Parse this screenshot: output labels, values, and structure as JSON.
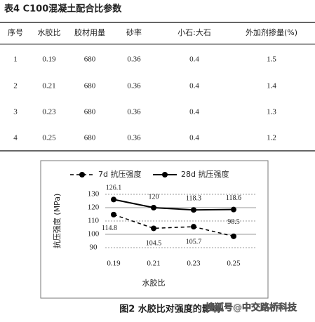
{
  "table": {
    "title": "表4 C100混凝土配合比参数",
    "headers": [
      "序号",
      "水胶比",
      "胶材用量",
      "砂率",
      "小石:大石",
      "外加剂掺量(%)"
    ],
    "rows": [
      [
        "1",
        "0.19",
        "680",
        "0.36",
        "0.4",
        "1.5"
      ],
      [
        "2",
        "0.21",
        "680",
        "0.36",
        "0.4",
        "1.4"
      ],
      [
        "3",
        "0.23",
        "680",
        "0.36",
        "0.4",
        "1.3"
      ],
      [
        "4",
        "0.25",
        "680",
        "0.36",
        "0.4",
        "1.2"
      ]
    ]
  },
  "chart_data": {
    "type": "line",
    "categories": [
      "0.19",
      "0.21",
      "0.23",
      "0.25"
    ],
    "series": [
      {
        "name": "7d 抗压强度",
        "color": "#000000",
        "dashed": true,
        "values": [
          114.8,
          104.5,
          105.7,
          98.5
        ]
      },
      {
        "name": "28d 抗压强度",
        "color": "#000000",
        "dashed": false,
        "values": [
          126.1,
          120,
          118.3,
          118.6
        ]
      }
    ],
    "ylim": [
      90,
      130
    ],
    "yticks": [
      90,
      100,
      110,
      120,
      130
    ],
    "grid": true,
    "y_label": "抗压强度 (MPa)",
    "x_label": "水胶比"
  },
  "caption": "图2 水胶比对强度的影响",
  "watermark": "搜狐号@中交路桥科技"
}
